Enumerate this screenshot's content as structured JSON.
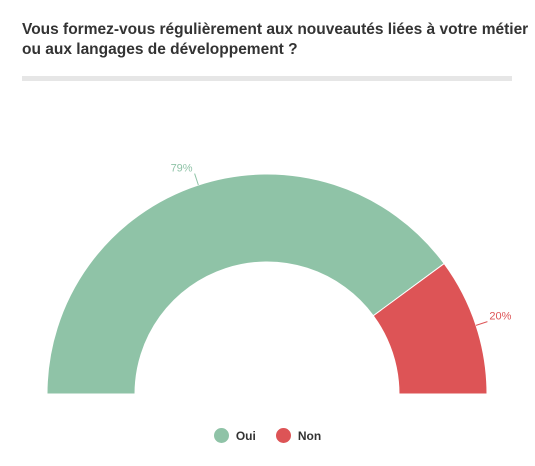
{
  "title": {
    "line1": "Vous formez-vous régulièrement aux nouveautés liées à votre métier",
    "line2": "ou aux langages de développement ?"
  },
  "chart_data": {
    "type": "pie",
    "variant": "semi-donut",
    "series": [
      {
        "name": "Oui",
        "value": 79,
        "label": "79%",
        "color": "#8fc3a7"
      },
      {
        "name": "Non",
        "value": 20,
        "label": "20%",
        "color": "#dd5456"
      }
    ],
    "legend_position": "bottom-center"
  }
}
